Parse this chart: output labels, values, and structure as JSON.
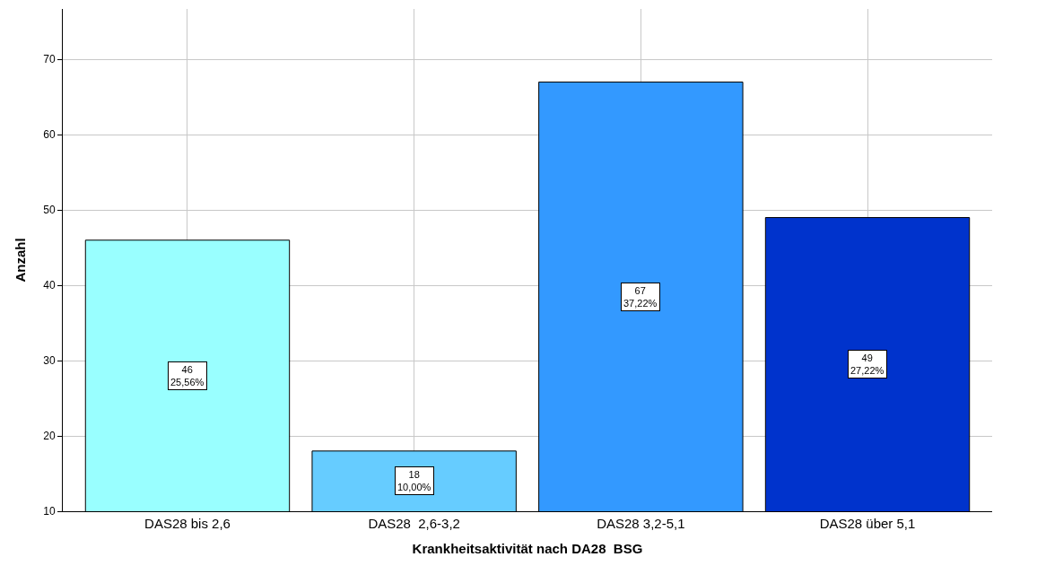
{
  "chart_data": {
    "type": "bar",
    "xlabel": "Krankheitsaktivität nach DA28  BSG",
    "ylabel": "Anzahl",
    "categories": [
      "DAS28 bis 2,6",
      "DAS28  2,6-3,2",
      "DAS28 3,2-5,1",
      "DAS28 über 5,1"
    ],
    "values": [
      46,
      18,
      67,
      49
    ],
    "colors": [
      "#99ffff",
      "#66ccff",
      "#3399ff",
      "#0033cc"
    ],
    "value_labels": [
      "46\n25,56%",
      "18\n10,00%",
      "67\n37,22%",
      "49\n27,22%"
    ],
    "ylim": [
      10,
      76.7
    ],
    "yticks": [
      10,
      20,
      30,
      40,
      50,
      60,
      70
    ],
    "grid": true,
    "legend": false
  }
}
